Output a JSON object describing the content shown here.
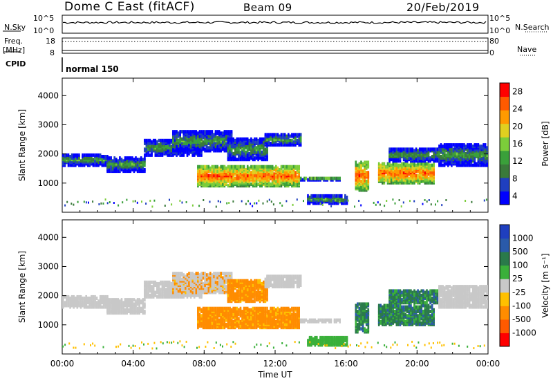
{
  "header": {
    "station": "Dome C East (fitACF)",
    "beam": "Beam 09",
    "date": "20/Feb/2019"
  },
  "top_panel": {
    "left_label": "N.Sky",
    "right_label": "N.Search",
    "left_ticks": [
      "10^5",
      "10^0"
    ],
    "right_ticks": [
      "10^5",
      "10^0"
    ],
    "freq_label": "Freq.",
    "freq_unit": "[MHz]",
    "freq_ticks": [
      "18",
      "8"
    ],
    "nave_label": "Nave",
    "nave_ticks": [
      "80",
      "0"
    ],
    "cpid_label": "CPID",
    "cpid_value": "normal 150"
  },
  "colors": {
    "power_scale": [
      "#0000ff",
      "#1f3fbf",
      "#3a7a3a",
      "#3aa03a",
      "#7ccd3a",
      "#e0d020",
      "#ff9a00",
      "#ff5a00",
      "#ff0000"
    ],
    "velocity_scale": [
      "#ff0000",
      "#ff5a00",
      "#ff8c00",
      "#ffc000",
      "#c8c8c8",
      "#3ab03a",
      "#2a7a4a",
      "#2a5aaa",
      "#1f3fbf"
    ]
  },
  "chart_data": [
    {
      "type": "heatmap",
      "title": "Power",
      "ylabel": "Slant Range [km]",
      "xlabel": "Time UT",
      "x_ticks": [
        "00:00",
        "04:00",
        "08:00",
        "12:00",
        "16:00",
        "20:00",
        "00:00"
      ],
      "y_ticks": [
        1000,
        2000,
        3000,
        4000
      ],
      "colorbar_label": "Power [dB]",
      "colorbar_ticks": [
        4,
        8,
        12,
        16,
        20,
        24,
        28
      ]
    },
    {
      "type": "heatmap",
      "title": "Velocity",
      "ylabel": "Slant Range [km]",
      "xlabel": "Time UT",
      "x_ticks": [
        "00:00",
        "04:00",
        "08:00",
        "12:00",
        "16:00",
        "20:00",
        "00:00"
      ],
      "y_ticks": [
        1000,
        2000,
        3000,
        4000
      ],
      "colorbar_label": "Velocity [m s⁻¹]",
      "colorbar_ticks": [
        1000,
        500,
        100,
        25,
        -25,
        -100,
        -500,
        -1000
      ]
    }
  ]
}
